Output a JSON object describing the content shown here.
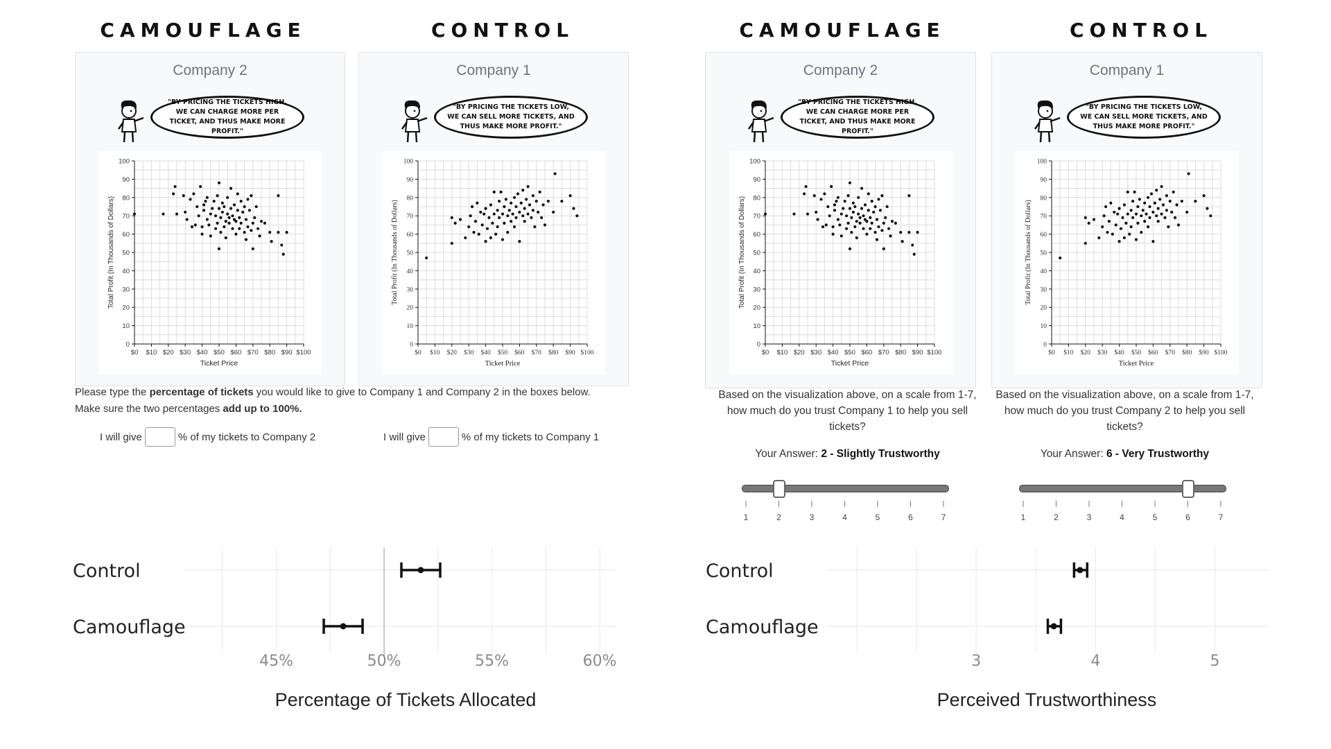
{
  "headers": [
    "CAMOUFLAGE",
    "CONTROL",
    "CAMOUFLAGE",
    "CONTROL"
  ],
  "panels": [
    {
      "company": "Company 2",
      "quote": "\"BY PRICING THE TICKETS HIGH, WE CAN CHARGE MORE PER TICKET, AND THUS MAKE MORE PROFIT.\""
    },
    {
      "company": "Company 1",
      "quote": "\"BY PRICING THE TICKETS LOW, WE CAN SELL MORE TICKETS, AND THUS MAKE MORE PROFIT.\""
    },
    {
      "company": "Company 2",
      "quote": "\"BY PRICING THE TICKETS HIGH, WE CAN CHARGE MORE PER TICKET, AND THUS MAKE MORE PROFIT.\""
    },
    {
      "company": "Company 1",
      "quote": "\"BY PRICING THE TICKETS LOW, WE CAN SELL MORE TICKETS, AND THUS MAKE MORE PROFIT.\""
    }
  ],
  "left_task": {
    "line1_pre": "Please type the ",
    "line1_bold": "percentage of tickets",
    "line1_post": " you would like to give to Company 1 and Company 2 in the boxes below.",
    "line2_pre": "Make sure the two percentages ",
    "line2_bold": "add up to 100%.",
    "give1_pre": "I will give",
    "give1_post": "% of my tickets to Company 2",
    "give2_pre": "I will give",
    "give2_post": "% of my tickets to Company 1"
  },
  "right_task": {
    "q1": "Based on the visualization above, on a scale from 1-7, how much do you trust Company 1 to help you sell tickets?",
    "q2": "Based on the visualization above, on a scale from 1-7, how much do you trust Company 2 to help you sell tickets?",
    "answer_prefix": "Your Answer: ",
    "answer1": "2 - Slightly Trustworthy",
    "answer2": "6 - Very Trustworthy",
    "slider1_value": 2,
    "slider2_value": 6,
    "scale": [
      "1",
      "2",
      "3",
      "4",
      "5",
      "6",
      "7"
    ]
  },
  "chart_data": [
    {
      "type": "scatter",
      "title": "",
      "xlabel": "Ticket Price",
      "ylabel": "Total Profit (In Thousands of Dollars)",
      "xlim": [
        0,
        100
      ],
      "ylim": [
        0,
        100
      ],
      "xticks": [
        "$0",
        "$10",
        "$20",
        "$30",
        "$40",
        "$50",
        "$60",
        "$70",
        "$80",
        "$90",
        "$100"
      ],
      "yticks": [
        "0",
        "10",
        "20",
        "30",
        "40",
        "50",
        "60",
        "70",
        "80",
        "90",
        "100"
      ],
      "trend": "negative",
      "points": [
        [
          0,
          71
        ],
        [
          17,
          71
        ],
        [
          24,
          86
        ],
        [
          23,
          82
        ],
        [
          25,
          71
        ],
        [
          29,
          81
        ],
        [
          31,
          68
        ],
        [
          30,
          72
        ],
        [
          33,
          79
        ],
        [
          34,
          64
        ],
        [
          35,
          82
        ],
        [
          36,
          65
        ],
        [
          37,
          75
        ],
        [
          38,
          70
        ],
        [
          39,
          86
        ],
        [
          40,
          60
        ],
        [
          40,
          64
        ],
        [
          41,
          76
        ],
        [
          41,
          73
        ],
        [
          42,
          78
        ],
        [
          43,
          68
        ],
        [
          43,
          80
        ],
        [
          44,
          65
        ],
        [
          45,
          71
        ],
        [
          45,
          59
        ],
        [
          46,
          74
        ],
        [
          47,
          78
        ],
        [
          48,
          63
        ],
        [
          48,
          70
        ],
        [
          49,
          66
        ],
        [
          49,
          81
        ],
        [
          50,
          74
        ],
        [
          50,
          88
        ],
        [
          50,
          52
        ],
        [
          51,
          69
        ],
        [
          51,
          61
        ],
        [
          52,
          77
        ],
        [
          52,
          72
        ],
        [
          53,
          75
        ],
        [
          53,
          64
        ],
        [
          54,
          67
        ],
        [
          54,
          58
        ],
        [
          55,
          71
        ],
        [
          55,
          80
        ],
        [
          56,
          69
        ],
        [
          56,
          66
        ],
        [
          57,
          85
        ],
        [
          57,
          74
        ],
        [
          58,
          63
        ],
        [
          58,
          70
        ],
        [
          59,
          68
        ],
        [
          59,
          76
        ],
        [
          60,
          67
        ],
        [
          60,
          60
        ],
        [
          61,
          73
        ],
        [
          61,
          82
        ],
        [
          62,
          69
        ],
        [
          62,
          63
        ],
        [
          63,
          66
        ],
        [
          63,
          78
        ],
        [
          64,
          72
        ],
        [
          65,
          61
        ],
        [
          65,
          75
        ],
        [
          66,
          68
        ],
        [
          66,
          57
        ],
        [
          67,
          64
        ],
        [
          67,
          79
        ],
        [
          68,
          73
        ],
        [
          69,
          62
        ],
        [
          69,
          81
        ],
        [
          70,
          66
        ],
        [
          70,
          52
        ],
        [
          71,
          69
        ],
        [
          72,
          75
        ],
        [
          73,
          63
        ],
        [
          74,
          59
        ],
        [
          75,
          67
        ],
        [
          77,
          66
        ],
        [
          80,
          61
        ],
        [
          81,
          56
        ],
        [
          85,
          61
        ],
        [
          85,
          81
        ],
        [
          87,
          54
        ],
        [
          88,
          49
        ],
        [
          90,
          61
        ]
      ]
    },
    {
      "type": "scatter",
      "title": "",
      "xlabel": "Ticket Price",
      "ylabel": "Total Profit (In Thousands of Dollars)",
      "xlim": [
        0,
        100
      ],
      "ylim": [
        0,
        100
      ],
      "xticks": [
        "$0",
        "$10",
        "$20",
        "$30",
        "$40",
        "$50",
        "$60",
        "$70",
        "$80",
        "$90",
        "$100"
      ],
      "yticks": [
        "0",
        "10",
        "20",
        "30",
        "40",
        "50",
        "60",
        "70",
        "80",
        "90",
        "100"
      ],
      "trend": "positive",
      "points": [
        [
          5,
          47
        ],
        [
          20,
          55
        ],
        [
          20,
          69
        ],
        [
          22,
          66
        ],
        [
          25,
          68
        ],
        [
          28,
          58
        ],
        [
          30,
          64
        ],
        [
          31,
          70
        ],
        [
          32,
          75
        ],
        [
          33,
          61
        ],
        [
          34,
          67
        ],
        [
          35,
          77
        ],
        [
          36,
          60
        ],
        [
          37,
          72
        ],
        [
          38,
          65
        ],
        [
          39,
          71
        ],
        [
          40,
          56
        ],
        [
          40,
          74
        ],
        [
          41,
          63
        ],
        [
          42,
          69
        ],
        [
          43,
          58
        ],
        [
          43,
          76
        ],
        [
          44,
          66
        ],
        [
          45,
          83
        ],
        [
          45,
          71
        ],
        [
          46,
          60
        ],
        [
          47,
          73
        ],
        [
          47,
          64
        ],
        [
          48,
          78
        ],
        [
          48,
          69
        ],
        [
          49,
          83
        ],
        [
          50,
          57
        ],
        [
          50,
          71
        ],
        [
          51,
          75
        ],
        [
          51,
          66
        ],
        [
          52,
          79
        ],
        [
          53,
          70
        ],
        [
          53,
          61
        ],
        [
          54,
          73
        ],
        [
          55,
          77
        ],
        [
          55,
          67
        ],
        [
          56,
          71
        ],
        [
          57,
          80
        ],
        [
          57,
          64
        ],
        [
          58,
          75
        ],
        [
          58,
          69
        ],
        [
          59,
          82
        ],
        [
          60,
          72
        ],
        [
          60,
          56
        ],
        [
          61,
          77
        ],
        [
          62,
          70
        ],
        [
          62,
          84
        ],
        [
          63,
          74
        ],
        [
          63,
          67
        ],
        [
          64,
          79
        ],
        [
          65,
          86
        ],
        [
          65,
          71
        ],
        [
          66,
          76
        ],
        [
          67,
          69
        ],
        [
          68,
          81
        ],
        [
          68,
          73
        ],
        [
          69,
          64
        ],
        [
          70,
          78
        ],
        [
          71,
          72
        ],
        [
          72,
          83
        ],
        [
          73,
          69
        ],
        [
          74,
          76
        ],
        [
          75,
          65
        ],
        [
          77,
          78
        ],
        [
          80,
          72
        ],
        [
          81,
          93
        ],
        [
          85,
          78
        ],
        [
          90,
          81
        ],
        [
          92,
          74
        ],
        [
          94,
          70
        ]
      ]
    }
  ],
  "dot_plots": [
    {
      "xlabel": "Percentage of Tickets Allocated",
      "xticks": [
        "45%",
        "50%",
        "55%",
        "60%"
      ],
      "xtick_values": [
        45,
        50,
        55,
        60
      ],
      "xlim": [
        40.8,
        60.8
      ],
      "reference_line": 50,
      "rows": [
        {
          "label": "Control",
          "mean": 51.7,
          "ci": [
            50.8,
            52.6
          ]
        },
        {
          "label": "Camouflage",
          "mean": 48.1,
          "ci": [
            47.2,
            49.0
          ]
        }
      ]
    },
    {
      "xlabel": "Perceived Trustworthiness",
      "xticks": [
        "3",
        "4",
        "5"
      ],
      "xtick_values": [
        3,
        4,
        5
      ],
      "xlim": [
        1.75,
        5.45
      ],
      "rows": [
        {
          "label": "Control",
          "mean": 3.87,
          "ci": [
            3.82,
            3.93
          ]
        },
        {
          "label": "Camouflage",
          "mean": 3.65,
          "ci": [
            3.6,
            3.71
          ]
        }
      ]
    }
  ]
}
